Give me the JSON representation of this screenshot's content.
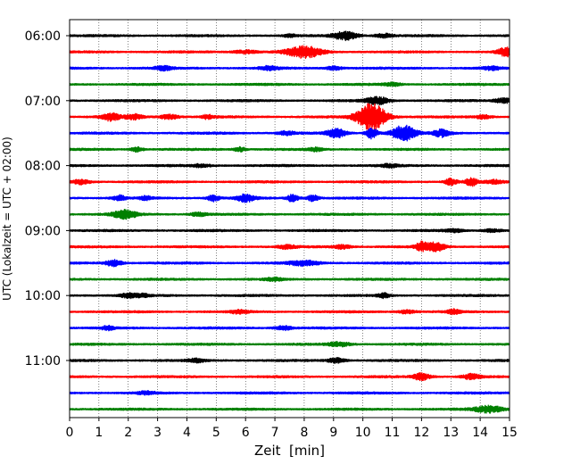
{
  "chart_data": {
    "type": "line",
    "title": "",
    "xlabel": "Zeit  [min]",
    "ylabel": "UTC (Lokalzeit = UTC + 02:00)",
    "xlim": [
      0,
      15
    ],
    "x_ticks": [
      "0",
      "1",
      "2",
      "3",
      "4",
      "5",
      "6",
      "7",
      "8",
      "9",
      "10",
      "11",
      "12",
      "13",
      "14",
      "15"
    ],
    "y_ticks": [
      "06:00",
      "07:00",
      "08:00",
      "09:00",
      "10:00",
      "11:00"
    ],
    "grid": "vertical dotted",
    "color_cycle": [
      "#000000",
      "#ff0000",
      "#0000ff",
      "#008000"
    ],
    "trace_interval_min": 15,
    "traces": [
      {
        "start": "06:00",
        "events": [
          [
            7.5,
            0.5,
            0.2
          ],
          [
            9.4,
            1.6,
            0.4
          ],
          [
            10.7,
            0.7,
            0.3
          ]
        ]
      },
      {
        "start": "06:15",
        "events": [
          [
            6.0,
            0.6,
            0.4
          ],
          [
            8.0,
            2.0,
            0.6
          ],
          [
            14.9,
            1.6,
            0.3
          ]
        ]
      },
      {
        "start": "06:30",
        "events": [
          [
            3.2,
            0.7,
            0.3
          ],
          [
            6.8,
            0.7,
            0.3
          ],
          [
            9.0,
            0.6,
            0.3
          ],
          [
            14.4,
            0.6,
            0.3
          ]
        ]
      },
      {
        "start": "06:45",
        "events": [
          [
            11.0,
            0.5,
            0.3
          ]
        ]
      },
      {
        "start": "07:00",
        "events": [
          [
            10.5,
            1.3,
            0.4
          ],
          [
            14.8,
            0.9,
            0.3
          ]
        ]
      },
      {
        "start": "07:15",
        "events": [
          [
            1.4,
            1.3,
            0.3
          ],
          [
            2.2,
            0.9,
            0.3
          ],
          [
            3.4,
            0.9,
            0.3
          ],
          [
            4.7,
            0.7,
            0.2
          ],
          [
            10.3,
            5.0,
            0.5
          ],
          [
            14.1,
            0.6,
            0.3
          ]
        ]
      },
      {
        "start": "07:30",
        "events": [
          [
            7.4,
            0.7,
            0.3
          ],
          [
            9.1,
            1.8,
            0.3
          ],
          [
            10.3,
            2.0,
            0.2
          ],
          [
            11.4,
            2.8,
            0.4
          ],
          [
            12.7,
            1.3,
            0.3
          ]
        ]
      },
      {
        "start": "07:45",
        "events": [
          [
            2.3,
            0.9,
            0.2
          ],
          [
            5.8,
            0.8,
            0.2
          ],
          [
            8.4,
            0.6,
            0.2
          ]
        ]
      },
      {
        "start": "08:00",
        "events": [
          [
            4.5,
            0.5,
            0.3
          ],
          [
            10.9,
            0.5,
            0.3
          ]
        ]
      },
      {
        "start": "08:15",
        "events": [
          [
            0.4,
            0.8,
            0.3
          ],
          [
            13.0,
            1.2,
            0.2
          ],
          [
            13.7,
            1.4,
            0.2
          ],
          [
            14.5,
            0.6,
            0.3
          ]
        ]
      },
      {
        "start": "08:30",
        "events": [
          [
            1.7,
            0.9,
            0.2
          ],
          [
            2.6,
            0.7,
            0.2
          ],
          [
            4.9,
            1.1,
            0.2
          ],
          [
            6.0,
            1.3,
            0.3
          ],
          [
            7.6,
            1.3,
            0.2
          ],
          [
            8.3,
            1.1,
            0.2
          ]
        ]
      },
      {
        "start": "08:45",
        "events": [
          [
            1.9,
            1.5,
            0.4
          ],
          [
            4.4,
            0.6,
            0.3
          ]
        ]
      },
      {
        "start": "09:00",
        "events": [
          [
            13.1,
            0.5,
            0.3
          ],
          [
            14.4,
            0.5,
            0.3
          ]
        ]
      },
      {
        "start": "09:15",
        "events": [
          [
            7.4,
            0.6,
            0.3
          ],
          [
            9.3,
            0.7,
            0.3
          ],
          [
            12.0,
            1.7,
            0.2
          ],
          [
            12.5,
            1.7,
            0.3
          ]
        ]
      },
      {
        "start": "09:30",
        "events": [
          [
            1.5,
            1.1,
            0.3
          ],
          [
            8.0,
            0.9,
            0.5
          ]
        ]
      },
      {
        "start": "09:45",
        "events": [
          [
            7.0,
            0.5,
            0.3
          ]
        ]
      },
      {
        "start": "10:00",
        "events": [
          [
            2.0,
            0.8,
            0.3
          ],
          [
            2.5,
            0.7,
            0.2
          ],
          [
            10.7,
            0.8,
            0.2
          ]
        ]
      },
      {
        "start": "10:15",
        "events": [
          [
            5.8,
            0.6,
            0.3
          ],
          [
            11.5,
            0.6,
            0.3
          ],
          [
            13.1,
            0.8,
            0.2
          ]
        ]
      },
      {
        "start": "10:30",
        "events": [
          [
            1.3,
            0.7,
            0.2
          ],
          [
            7.3,
            0.7,
            0.3
          ]
        ]
      },
      {
        "start": "10:45",
        "events": [
          [
            9.2,
            0.7,
            0.4
          ]
        ]
      },
      {
        "start": "11:00",
        "events": [
          [
            4.3,
            0.6,
            0.3
          ],
          [
            9.1,
            0.8,
            0.3
          ]
        ]
      },
      {
        "start": "11:15",
        "events": [
          [
            12.0,
            1.2,
            0.3
          ],
          [
            13.7,
            0.9,
            0.3
          ]
        ]
      },
      {
        "start": "11:30",
        "events": [
          [
            2.6,
            0.5,
            0.3
          ]
        ]
      },
      {
        "start": "11:45",
        "events": [
          [
            14.3,
            1.2,
            0.5
          ]
        ]
      }
    ]
  }
}
